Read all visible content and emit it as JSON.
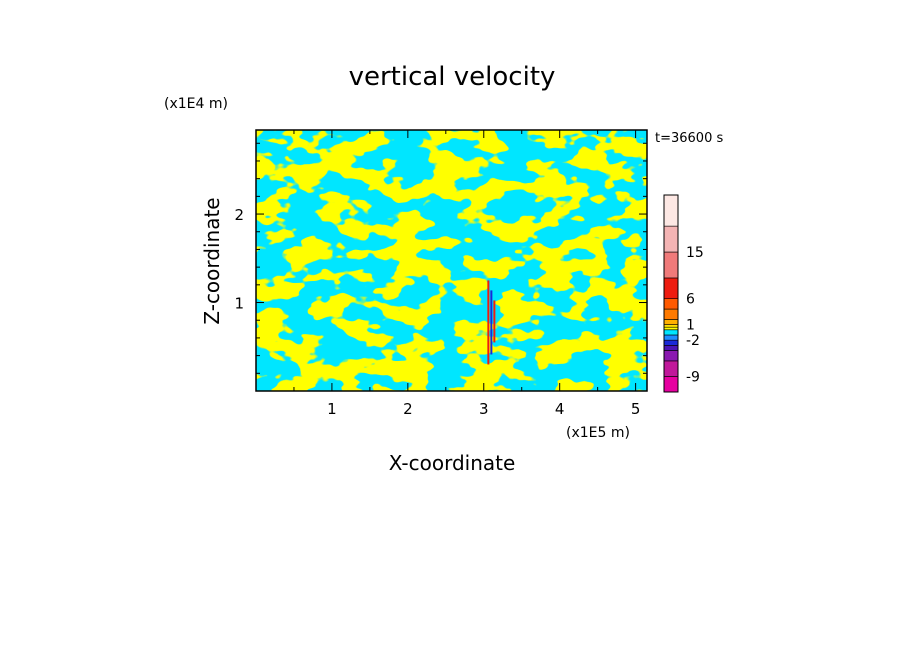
{
  "chart_data": {
    "type": "heatmap",
    "title": "vertical velocity",
    "xlabel": "X-coordinate",
    "ylabel": "Z-coordinate",
    "x_unit_label": "(x1E5 m)",
    "y_unit_label": "(x1E4 m)",
    "time_label": "t=36600 s",
    "xlim": [
      0,
      5.15
    ],
    "ylim": [
      0,
      2.95
    ],
    "x_ticks": [
      1,
      2,
      3,
      4,
      5
    ],
    "y_ticks": [
      1,
      2
    ],
    "colorbar": {
      "tick_labels": [
        "15",
        "6",
        "1",
        "-2",
        "-9"
      ],
      "tick_values": [
        15,
        6,
        1,
        -2,
        -9
      ],
      "levels": [
        {
          "lo": -12,
          "hi": -9,
          "color": "#e600a0"
        },
        {
          "lo": -9,
          "hi": -6,
          "color": "#c0189a"
        },
        {
          "lo": -6,
          "hi": -4,
          "color": "#8a18b0"
        },
        {
          "lo": -4,
          "hi": -3,
          "color": "#4a14b4"
        },
        {
          "lo": -3,
          "hi": -2,
          "color": "#1a2ad8"
        },
        {
          "lo": -2,
          "hi": -1,
          "color": "#1e8cff"
        },
        {
          "lo": -1,
          "hi": 0,
          "color": "#00e6ff"
        },
        {
          "lo": 0,
          "hi": 0.5,
          "color": "#ffff00"
        },
        {
          "lo": 0.5,
          "hi": 1,
          "color": "#ffe000"
        },
        {
          "lo": 1,
          "hi": 2,
          "color": "#ffb000"
        },
        {
          "lo": 2,
          "hi": 4,
          "color": "#ff7a00"
        },
        {
          "lo": 4,
          "hi": 6,
          "color": "#ff5a00"
        },
        {
          "lo": 6,
          "hi": 10,
          "color": "#ee1c10"
        },
        {
          "lo": 10,
          "hi": 15,
          "color": "#f07a7a"
        },
        {
          "lo": 15,
          "hi": 20,
          "color": "#f4b4b4"
        },
        {
          "lo": 20,
          "hi": 26,
          "color": "#fde8e4"
        }
      ]
    },
    "field_colors": {
      "negative": "#00e6ff",
      "positive": "#ffff00",
      "strong_up": "#ee1c10",
      "strong_down": "#1a2ad8"
    },
    "features": [
      {
        "note": "narrow strong-velocity column",
        "x_center": 3.1,
        "z_range": [
          0.3,
          1.25
        ]
      }
    ]
  }
}
